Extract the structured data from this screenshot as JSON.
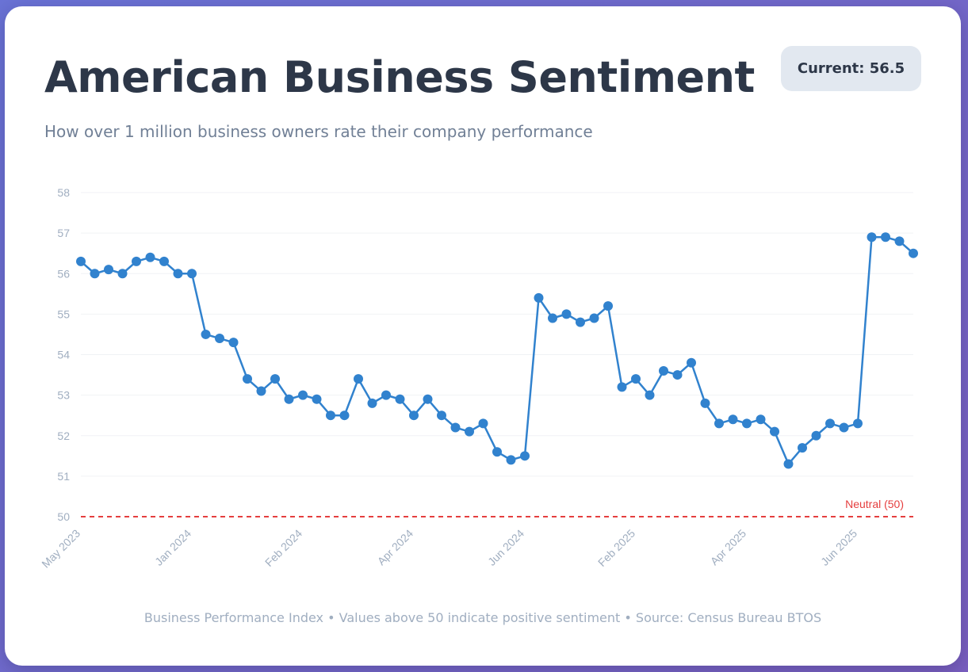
{
  "header": {
    "title": "American Business Sentiment",
    "subtitle": "How over 1 million business owners rate their company performance",
    "current_badge": "Current: 56.5"
  },
  "footer": {
    "note": "Business Performance Index • Values above 50 indicate positive sentiment • Source: Census Bureau BTOS"
  },
  "colors": {
    "line": "#3182ce",
    "neutral": "#e53e3e",
    "grid": "#f0f2f5",
    "tick": "#a0aec0"
  },
  "chart_data": {
    "type": "line",
    "title": "American Business Sentiment",
    "xlabel": "",
    "ylabel": "",
    "ylim": [
      50,
      58
    ],
    "yticks": [
      50,
      51,
      52,
      53,
      54,
      55,
      56,
      57,
      58
    ],
    "grid": true,
    "neutral_line": {
      "value": 50,
      "label": "Neutral (50)"
    },
    "x_tick_labels": [
      {
        "index": 0,
        "label": "May 2023"
      },
      {
        "index": 8,
        "label": "Jan 2024"
      },
      {
        "index": 16,
        "label": "Feb 2024"
      },
      {
        "index": 24,
        "label": "Apr 2024"
      },
      {
        "index": 32,
        "label": "Jun 2024"
      },
      {
        "index": 40,
        "label": "Feb 2025"
      },
      {
        "index": 48,
        "label": "Apr 2025"
      },
      {
        "index": 56,
        "label": "Jun 2025"
      }
    ],
    "series": [
      {
        "name": "Business Performance Index",
        "values": [
          56.3,
          56.0,
          56.1,
          56.0,
          56.3,
          56.4,
          56.3,
          56.0,
          56.0,
          54.5,
          54.4,
          54.3,
          53.4,
          53.1,
          53.4,
          52.9,
          53.0,
          52.9,
          52.5,
          52.5,
          53.4,
          52.8,
          53.0,
          52.9,
          52.5,
          52.9,
          52.5,
          52.2,
          52.1,
          52.3,
          51.6,
          51.4,
          51.5,
          55.4,
          54.9,
          55.0,
          54.8,
          54.9,
          55.2,
          53.2,
          53.4,
          53.0,
          53.6,
          53.5,
          53.8,
          52.8,
          52.3,
          52.4,
          52.3,
          52.4,
          52.1,
          51.3,
          51.7,
          52.0,
          52.3,
          52.2,
          52.3,
          56.9,
          56.9,
          56.8,
          56.5
        ]
      }
    ]
  }
}
